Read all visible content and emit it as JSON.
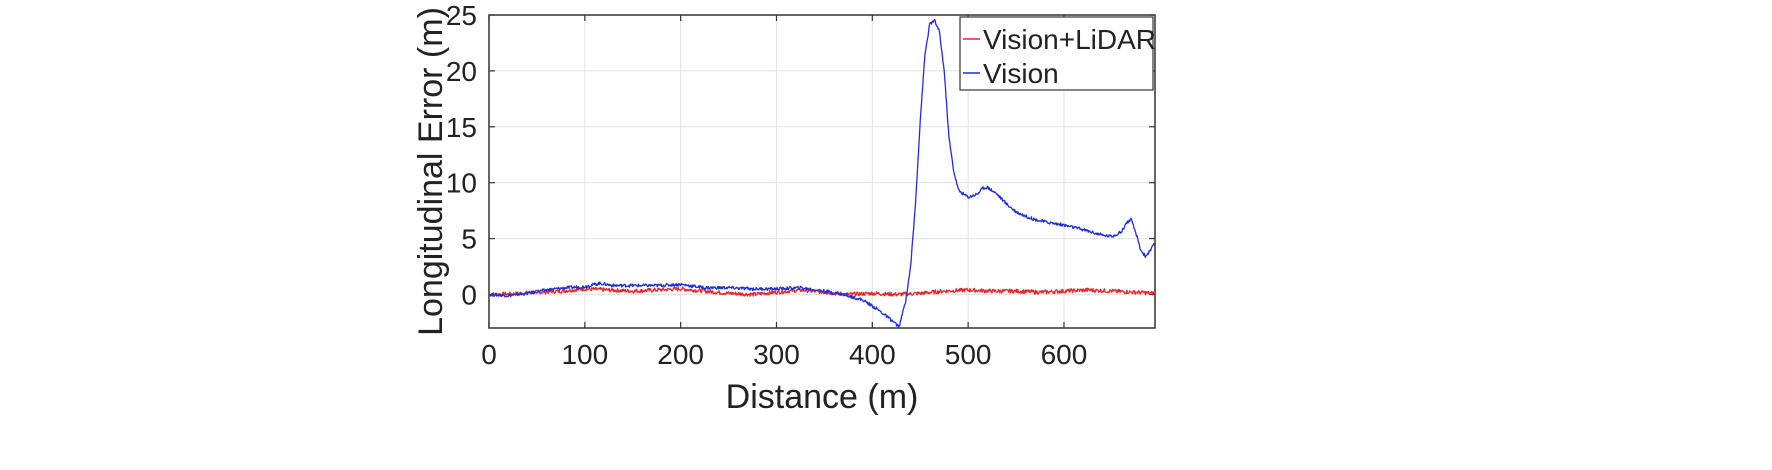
{
  "chart_data": {
    "type": "line",
    "title": "",
    "xlabel": "Distance (m)",
    "ylabel": "Longitudinal Error (m)",
    "xlim": [
      0,
      695
    ],
    "ylim": [
      -3,
      25
    ],
    "xticks": [
      0,
      100,
      200,
      300,
      400,
      500,
      600
    ],
    "yticks": [
      0,
      5,
      10,
      15,
      20,
      25
    ],
    "xtick_labels": [
      "0",
      "100",
      "200",
      "300",
      "400",
      "500",
      "600"
    ],
    "ytick_labels": [
      "0",
      "5",
      "10",
      "15",
      "20",
      "25"
    ],
    "grid": true,
    "legend_position": "top-right",
    "series": [
      {
        "name": "Vision+LiDAR",
        "color": "#e8262b",
        "x": [
          0,
          25,
          50,
          75,
          100,
          125,
          150,
          175,
          200,
          225,
          250,
          275,
          300,
          325,
          350,
          375,
          400,
          425,
          450,
          475,
          500,
          525,
          550,
          575,
          600,
          625,
          650,
          675,
          695
        ],
        "y": [
          0.0,
          0.05,
          0.2,
          0.3,
          0.5,
          0.4,
          0.3,
          0.4,
          0.5,
          0.3,
          0.1,
          0.0,
          0.2,
          0.4,
          0.2,
          0.0,
          0.1,
          0.0,
          0.1,
          0.3,
          0.4,
          0.3,
          0.3,
          0.2,
          0.3,
          0.4,
          0.3,
          0.2,
          0.1
        ]
      },
      {
        "name": "Vision",
        "color": "#1f2fd6",
        "x": [
          0,
          20,
          40,
          60,
          80,
          100,
          115,
          130,
          150,
          175,
          200,
          225,
          250,
          275,
          300,
          325,
          350,
          370,
          390,
          405,
          420,
          428,
          435,
          440,
          445,
          450,
          455,
          460,
          465,
          470,
          475,
          480,
          485,
          490,
          500,
          510,
          515,
          520,
          530,
          540,
          550,
          560,
          570,
          580,
          600,
          620,
          640,
          650,
          660,
          665,
          670,
          675,
          680,
          685,
          690,
          695
        ],
        "y": [
          0.0,
          -0.1,
          0.1,
          0.4,
          0.6,
          0.7,
          1.0,
          0.8,
          0.8,
          0.8,
          0.9,
          0.6,
          0.6,
          0.5,
          0.5,
          0.6,
          0.3,
          0.0,
          -0.5,
          -1.3,
          -2.3,
          -2.9,
          -0.5,
          2.5,
          8.0,
          15.5,
          21.5,
          24.2,
          24.5,
          23.5,
          20.0,
          14.0,
          11.0,
          9.3,
          8.7,
          9.0,
          9.5,
          9.6,
          9.0,
          8.1,
          7.4,
          7.0,
          6.7,
          6.5,
          6.2,
          5.8,
          5.3,
          5.2,
          5.6,
          6.4,
          6.7,
          5.5,
          4.0,
          3.4,
          3.9,
          4.6
        ]
      }
    ]
  }
}
